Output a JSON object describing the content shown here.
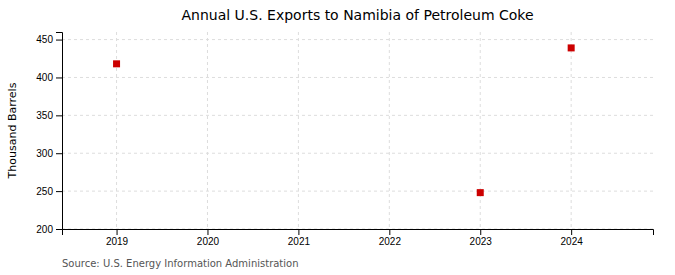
{
  "chart_data": {
    "type": "scatter",
    "title": "Annual U.S. Exports to Namibia of Petroleum Coke",
    "y_label": "Thousand Barrels",
    "source": "Source: U.S. Energy Information Administration",
    "x": [
      2019,
      2023,
      2024
    ],
    "values": [
      418,
      248,
      439
    ],
    "color": "#cc0000",
    "marker": "square",
    "xlim": [
      2018.4,
      2024.9
    ],
    "ylim": [
      200,
      460
    ],
    "xticks": [
      2019,
      2020,
      2021,
      2022,
      2023,
      2024
    ],
    "yticks": [
      200,
      250,
      300,
      350,
      400,
      450
    ],
    "grid": true
  }
}
